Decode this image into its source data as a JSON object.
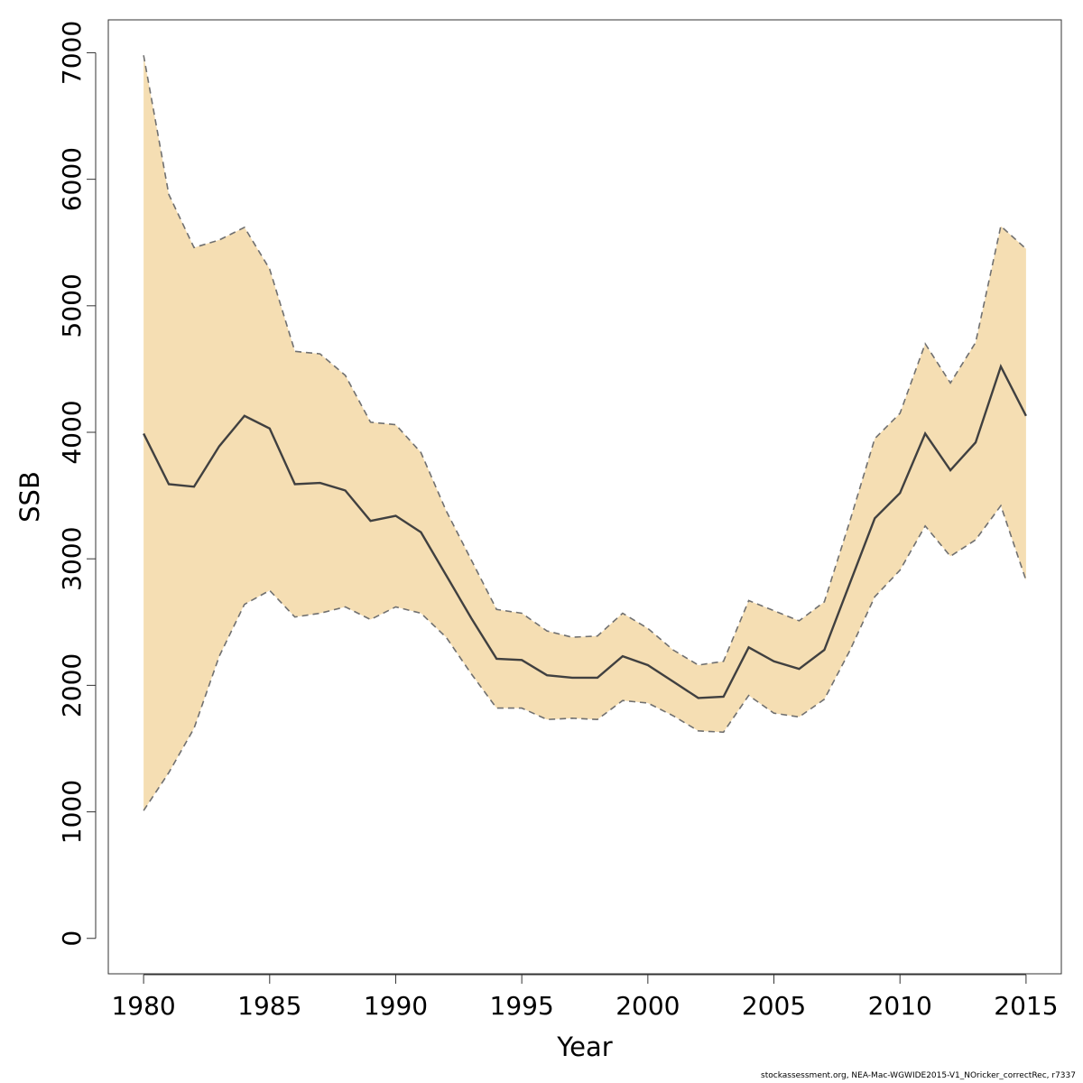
{
  "footer_text": "stockassessment.org, NEA-Mac-WGWIDE2015-V1_NOricker_correctRec, r7337",
  "chart_data": {
    "type": "line",
    "xlabel": "Year",
    "ylabel": "SSB",
    "xlim": [
      1978.6,
      2016.4
    ],
    "ylim": [
      -280,
      7260
    ],
    "x_ticks": [
      1980,
      1985,
      1990,
      1995,
      2000,
      2005,
      2010,
      2015
    ],
    "y_ticks": [
      0,
      1000,
      2000,
      3000,
      4000,
      5000,
      6000,
      7000
    ],
    "grid": false,
    "legend": "none",
    "colors": {
      "band": "#F5DEB3",
      "line": "#404040",
      "bound": "#707070"
    },
    "x": [
      1980,
      1981,
      1982,
      1983,
      1984,
      1985,
      1986,
      1987,
      1988,
      1989,
      1990,
      1991,
      1992,
      1993,
      1994,
      1995,
      1996,
      1997,
      1998,
      1999,
      2000,
      2001,
      2002,
      2003,
      2004,
      2005,
      2006,
      2007,
      2008,
      2009,
      2010,
      2011,
      2012,
      2013,
      2014,
      2015
    ],
    "series": [
      {
        "values": [
          3990,
          3590,
          3570,
          3890,
          4130,
          4030,
          3590,
          3600,
          3540,
          3300,
          3340,
          3210,
          2870,
          2530,
          2210,
          2200,
          2080,
          2060,
          2060,
          2230,
          2160,
          2030,
          1900,
          1910,
          2300,
          2190,
          2130,
          2280,
          2800,
          3320,
          3520,
          3990,
          3700,
          3920,
          4520,
          4130
        ]
      },
      {
        "values": [
          6980,
          5880,
          5460,
          5520,
          5620,
          5290,
          4640,
          4620,
          4450,
          4080,
          4060,
          3840,
          3380,
          2990,
          2600,
          2570,
          2430,
          2380,
          2390,
          2570,
          2450,
          2280,
          2160,
          2190,
          2670,
          2590,
          2510,
          2660,
          3290,
          3950,
          4150,
          4700,
          4390,
          4710,
          5630,
          5450
        ]
      },
      {
        "values": [
          1010,
          1310,
          1660,
          2230,
          2640,
          2750,
          2540,
          2570,
          2620,
          2520,
          2620,
          2570,
          2380,
          2090,
          1820,
          1820,
          1730,
          1740,
          1730,
          1880,
          1860,
          1760,
          1640,
          1630,
          1920,
          1780,
          1750,
          1890,
          2270,
          2700,
          2910,
          3260,
          3020,
          3150,
          3420,
          2830
        ]
      }
    ]
  }
}
